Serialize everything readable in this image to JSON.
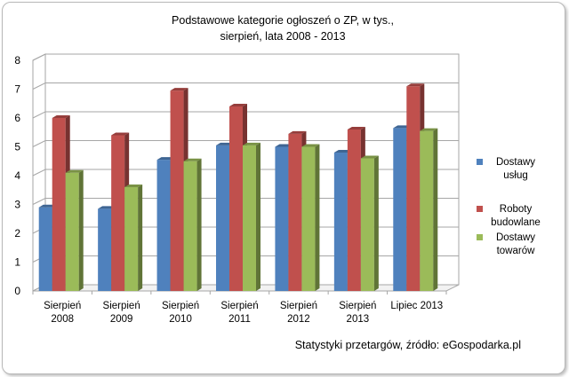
{
  "chart_data": {
    "type": "bar",
    "title": "Podstawowe kategorie ogłoszeń o ZP, w tys.,",
    "subtitle": "sierpień,  lata 2008  - 2013",
    "categories": [
      [
        "Sierpień",
        "2008"
      ],
      [
        "Sierpień",
        "2009"
      ],
      [
        "Sierpień",
        "2010"
      ],
      [
        "Sierpień",
        "2011"
      ],
      [
        "Sierpień",
        "2012"
      ],
      [
        "Sierpień",
        "2013"
      ],
      [
        "Lipiec 2013"
      ]
    ],
    "series": [
      {
        "name": [
          "Dostawy",
          "usług"
        ],
        "color": "#4f81bd",
        "values": [
          2.9,
          2.85,
          4.55,
          5.05,
          5.0,
          4.8,
          5.65
        ]
      },
      {
        "name": [
          "Roboty",
          "budowlane"
        ],
        "color": "#c0504d",
        "values": [
          6.0,
          5.4,
          6.95,
          6.4,
          5.45,
          5.6,
          7.1
        ]
      },
      {
        "name": [
          "Dostawy",
          "towarów"
        ],
        "color": "#9bbb59",
        "values": [
          4.1,
          3.6,
          4.5,
          5.05,
          5.0,
          4.6,
          5.55
        ]
      }
    ],
    "yticks": [
      0,
      1,
      2,
      3,
      4,
      5,
      6,
      7,
      8
    ],
    "ylim": [
      0,
      8
    ],
    "grid": true,
    "legend": "right",
    "source": "Statystyki przetargów, źródło: eGospodarka.pl"
  }
}
